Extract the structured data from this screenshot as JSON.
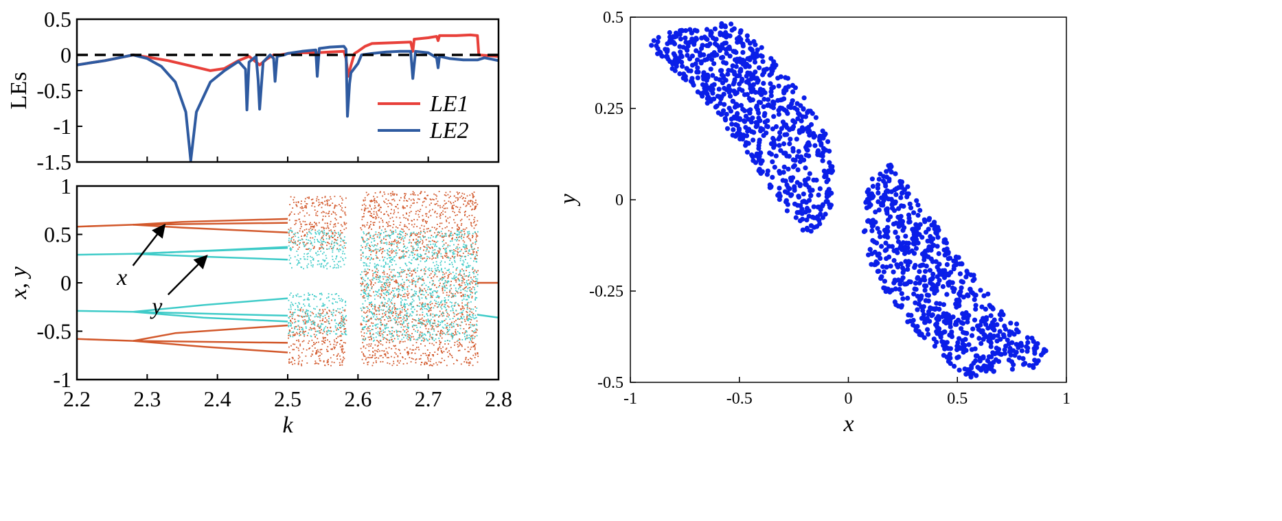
{
  "chart_data": [
    {
      "id": "lyapunov",
      "type": "line",
      "title": "",
      "xlabel": "",
      "ylabel": "LEs",
      "xlim": [
        2.2,
        2.8
      ],
      "ylim": [
        -1.5,
        0.5
      ],
      "xticks": [
        2.2,
        2.3,
        2.4,
        2.5,
        2.6,
        2.7,
        2.8
      ],
      "yticks": [
        0.5,
        0,
        -0.5,
        -1,
        -1.5
      ],
      "ytick_labels": [
        "0.5",
        "0",
        "-0.5",
        "-1",
        "-1.5"
      ],
      "zero_line": 0,
      "series": [
        {
          "name": "LE1",
          "color": "#e8403a",
          "points": [
            [
              2.2,
              -0.14
            ],
            [
              2.22,
              -0.11
            ],
            [
              2.24,
              -0.08
            ],
            [
              2.26,
              -0.04
            ],
            [
              2.28,
              0.0
            ],
            [
              2.3,
              -0.03
            ],
            [
              2.33,
              -0.08
            ],
            [
              2.36,
              -0.15
            ],
            [
              2.39,
              -0.22
            ],
            [
              2.41,
              -0.19
            ],
            [
              2.43,
              -0.08
            ],
            [
              2.445,
              -0.02
            ],
            [
              2.455,
              -0.1
            ],
            [
              2.46,
              -0.14
            ],
            [
              2.47,
              -0.06
            ],
            [
              2.48,
              0.0
            ],
            [
              2.49,
              0.0
            ],
            [
              2.5,
              0.02
            ],
            [
              2.52,
              0.03
            ],
            [
              2.54,
              0.03
            ],
            [
              2.56,
              0.04
            ],
            [
              2.58,
              0.05
            ],
            [
              2.583,
              -0.05
            ],
            [
              2.586,
              -0.3
            ],
            [
              2.59,
              -0.15
            ],
            [
              2.595,
              0.02
            ],
            [
              2.6,
              0.05
            ],
            [
              2.61,
              0.12
            ],
            [
              2.62,
              0.16
            ],
            [
              2.65,
              0.17
            ],
            [
              2.675,
              0.18
            ],
            [
              2.678,
              0.05
            ],
            [
              2.68,
              0.22
            ],
            [
              2.7,
              0.24
            ],
            [
              2.712,
              0.26
            ],
            [
              2.714,
              0.2
            ],
            [
              2.716,
              0.27
            ],
            [
              2.74,
              0.27
            ],
            [
              2.76,
              0.28
            ],
            [
              2.77,
              0.27
            ],
            [
              2.772,
              0.0
            ],
            [
              2.8,
              -0.02
            ]
          ]
        },
        {
          "name": "LE2",
          "color": "#2e5aa0",
          "points": [
            [
              2.2,
              -0.14
            ],
            [
              2.22,
              -0.11
            ],
            [
              2.24,
              -0.08
            ],
            [
              2.26,
              -0.04
            ],
            [
              2.28,
              0.0
            ],
            [
              2.3,
              -0.05
            ],
            [
              2.32,
              -0.16
            ],
            [
              2.34,
              -0.38
            ],
            [
              2.355,
              -0.8
            ],
            [
              2.362,
              -1.48
            ],
            [
              2.37,
              -0.8
            ],
            [
              2.39,
              -0.38
            ],
            [
              2.41,
              -0.22
            ],
            [
              2.43,
              -0.09
            ],
            [
              2.44,
              -0.2
            ],
            [
              2.442,
              -0.77
            ],
            [
              2.445,
              -0.1
            ],
            [
              2.455,
              -0.02
            ],
            [
              2.458,
              -0.36
            ],
            [
              2.46,
              -0.76
            ],
            [
              2.465,
              -0.1
            ],
            [
              2.475,
              0.0
            ],
            [
              2.48,
              -0.05
            ],
            [
              2.482,
              -0.37
            ],
            [
              2.485,
              -0.02
            ],
            [
              2.495,
              0.0
            ],
            [
              2.5,
              0.02
            ],
            [
              2.52,
              0.05
            ],
            [
              2.54,
              0.07
            ],
            [
              2.542,
              -0.3
            ],
            [
              2.545,
              0.09
            ],
            [
              2.56,
              0.11
            ],
            [
              2.58,
              0.12
            ],
            [
              2.583,
              0.08
            ],
            [
              2.585,
              -0.86
            ],
            [
              2.588,
              -0.4
            ],
            [
              2.59,
              -0.25
            ],
            [
              2.6,
              -0.12
            ],
            [
              2.605,
              0.0
            ],
            [
              2.62,
              0.02
            ],
            [
              2.64,
              0.04
            ],
            [
              2.66,
              0.05
            ],
            [
              2.675,
              0.05
            ],
            [
              2.678,
              -0.33
            ],
            [
              2.682,
              0.05
            ],
            [
              2.7,
              0.03
            ],
            [
              2.712,
              -0.04
            ],
            [
              2.714,
              -0.18
            ],
            [
              2.716,
              -0.02
            ],
            [
              2.73,
              -0.05
            ],
            [
              2.75,
              -0.07
            ],
            [
              2.77,
              -0.07
            ],
            [
              2.78,
              -0.04
            ],
            [
              2.79,
              -0.06
            ],
            [
              2.8,
              -0.08
            ]
          ]
        }
      ],
      "legend": {
        "position": "bottom-right",
        "entries": [
          "LE1",
          "LE2"
        ]
      }
    },
    {
      "id": "bifurcation",
      "type": "scatter",
      "title": "",
      "xlabel": "k",
      "ylabel": "x, y",
      "xlim": [
        2.2,
        2.8
      ],
      "ylim": [
        -1,
        1
      ],
      "xticks": [
        2.2,
        2.3,
        2.4,
        2.5,
        2.6,
        2.7,
        2.8
      ],
      "xtick_labels": [
        "2.2",
        "2.3",
        "2.4",
        "2.5",
        "2.6",
        "2.7",
        "2.8"
      ],
      "yticks": [
        1,
        0.5,
        0,
        -0.5,
        -1
      ],
      "ytick_labels": [
        "1",
        "0.5",
        "0",
        "-0.5",
        "-1"
      ],
      "series": [
        {
          "name": "x",
          "color": "#d2582b",
          "branches": [
            [
              [
                2.2,
                0.58
              ],
              [
                2.28,
                0.6
              ],
              [
                2.5,
                0.62
              ]
            ],
            [
              [
                2.28,
                0.6
              ],
              [
                2.35,
                0.63
              ],
              [
                2.5,
                0.66
              ]
            ],
            [
              [
                2.28,
                0.6
              ],
              [
                2.35,
                0.57
              ],
              [
                2.5,
                0.52
              ]
            ],
            [
              [
                2.2,
                -0.58
              ],
              [
                2.28,
                -0.6
              ],
              [
                2.5,
                -0.62
              ]
            ],
            [
              [
                2.28,
                -0.6
              ],
              [
                2.38,
                -0.66
              ],
              [
                2.5,
                -0.72
              ]
            ],
            [
              [
                2.28,
                -0.6
              ],
              [
                2.34,
                -0.52
              ],
              [
                2.5,
                -0.44
              ]
            ],
            [
              [
                2.77,
                0.0
              ],
              [
                2.8,
                0.0
              ]
            ]
          ],
          "chaos_bands": [
            {
              "k": [
                2.5,
                2.583
              ],
              "y": [
                0.35,
                0.9
              ]
            },
            {
              "k": [
                2.5,
                2.583
              ],
              "y": [
                -0.85,
                -0.25
              ]
            },
            {
              "k": [
                2.603,
                2.77
              ],
              "y": [
                0.25,
                0.95
              ]
            },
            {
              "k": [
                2.603,
                2.77
              ],
              "y": [
                -0.85,
                -0.2
              ]
            },
            {
              "k": [
                2.603,
                2.77
              ],
              "y": [
                -0.15,
                0.15
              ]
            }
          ]
        },
        {
          "name": "y",
          "color": "#3ecbc8",
          "branches": [
            [
              [
                2.2,
                0.29
              ],
              [
                2.28,
                0.3
              ],
              [
                2.5,
                0.36
              ]
            ],
            [
              [
                2.28,
                0.3
              ],
              [
                2.38,
                0.33
              ],
              [
                2.5,
                0.37
              ]
            ],
            [
              [
                2.28,
                0.3
              ],
              [
                2.38,
                0.27
              ],
              [
                2.5,
                0.24
              ]
            ],
            [
              [
                2.2,
                -0.29
              ],
              [
                2.28,
                -0.3
              ],
              [
                2.5,
                -0.34
              ]
            ],
            [
              [
                2.28,
                -0.3
              ],
              [
                2.38,
                -0.23
              ],
              [
                2.5,
                -0.16
              ]
            ],
            [
              [
                2.28,
                -0.3
              ],
              [
                2.38,
                -0.36
              ],
              [
                2.5,
                -0.4
              ]
            ],
            [
              [
                2.77,
                -0.33
              ],
              [
                2.8,
                -0.36
              ]
            ]
          ],
          "chaos_bands": [
            {
              "k": [
                2.5,
                2.583
              ],
              "y": [
                0.15,
                0.55
              ]
            },
            {
              "k": [
                2.5,
                2.583
              ],
              "y": [
                -0.55,
                -0.1
              ]
            },
            {
              "k": [
                2.603,
                2.77
              ],
              "y": [
                -0.6,
                0.55
              ]
            }
          ]
        }
      ],
      "annotations": [
        {
          "text": "x",
          "arrow_from": [
            2.27,
            0.05
          ],
          "arrow_to": [
            2.325,
            0.6
          ]
        },
        {
          "text": "y",
          "arrow_from": [
            2.32,
            -0.25
          ],
          "arrow_to": [
            2.385,
            0.28
          ]
        }
      ]
    },
    {
      "id": "attractor",
      "type": "scatter",
      "title": "",
      "xlabel": "x",
      "ylabel": "y",
      "xlim": [
        -1,
        1
      ],
      "ylim": [
        -0.5,
        0.5
      ],
      "xticks": [
        -1,
        -0.5,
        0,
        0.5,
        1
      ],
      "xtick_labels": [
        "-1",
        "-0.5",
        "0",
        "0.5",
        "1"
      ],
      "yticks": [
        0.5,
        0.25,
        0,
        -0.25,
        -0.5
      ],
      "ytick_labels": [
        "0.5",
        "0.25",
        "0",
        "-0.25",
        "-0.5"
      ],
      "color": "#0a1ee8",
      "point_count": 1500,
      "lobes": [
        {
          "polygon": [
            [
              -0.92,
              0.42
            ],
            [
              -0.85,
              0.46
            ],
            [
              -0.68,
              0.47
            ],
            [
              -0.55,
              0.49
            ],
            [
              -0.4,
              0.42
            ],
            [
              -0.22,
              0.3
            ],
            [
              -0.1,
              0.18
            ],
            [
              -0.07,
              0.08
            ],
            [
              -0.08,
              -0.05
            ],
            [
              -0.2,
              -0.1
            ],
            [
              -0.25,
              -0.06
            ],
            [
              -0.5,
              0.15
            ],
            [
              -0.7,
              0.3
            ]
          ]
        },
        {
          "polygon": [
            [
              0.92,
              -0.42
            ],
            [
              0.85,
              -0.46
            ],
            [
              0.68,
              -0.47
            ],
            [
              0.55,
              -0.49
            ],
            [
              0.4,
              -0.42
            ],
            [
              0.22,
              -0.3
            ],
            [
              0.1,
              -0.18
            ],
            [
              0.07,
              -0.08
            ],
            [
              0.08,
              0.05
            ],
            [
              0.2,
              0.1
            ],
            [
              0.25,
              0.06
            ],
            [
              0.5,
              -0.15
            ],
            [
              0.7,
              -0.3
            ]
          ]
        }
      ]
    }
  ]
}
